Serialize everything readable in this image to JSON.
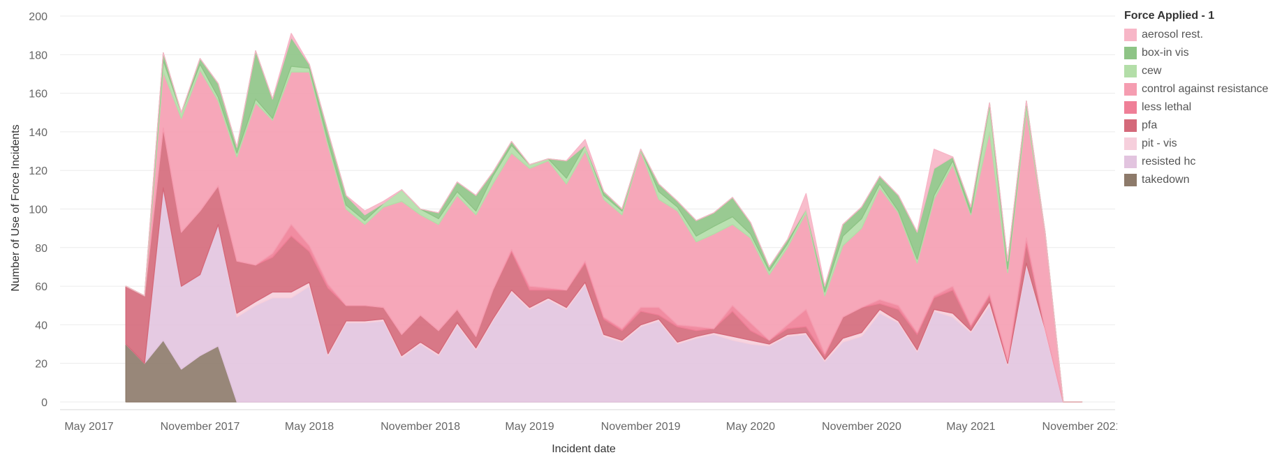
{
  "chart_data": {
    "type": "area",
    "title": "",
    "xlabel": "Incident date",
    "ylabel": "Number of Use of Force Incidents",
    "ylim": [
      -4,
      204
    ],
    "yticks": [
      0,
      20,
      40,
      60,
      80,
      100,
      120,
      140,
      160,
      180,
      200
    ],
    "xlim": [
      "2017-03-14",
      "2021-12-26"
    ],
    "xticks": [
      {
        "date": "2017-05-01",
        "label": "May 2017"
      },
      {
        "date": "2017-11-01",
        "label": "November 2017"
      },
      {
        "date": "2018-05-01",
        "label": "May 2018"
      },
      {
        "date": "2018-11-01",
        "label": "November 2018"
      },
      {
        "date": "2019-05-01",
        "label": "May 2019"
      },
      {
        "date": "2019-11-01",
        "label": "November 2019"
      },
      {
        "date": "2020-05-01",
        "label": "May 2020"
      },
      {
        "date": "2020-11-01",
        "label": "November 2020"
      },
      {
        "date": "2021-05-01",
        "label": "May 2021"
      },
      {
        "date": "2021-11-01",
        "label": "November 2021"
      }
    ],
    "grid": true,
    "legend_position": "right",
    "legend_title": "Force Applied - 1",
    "x": [
      "2017-07-01",
      "2017-08-01",
      "2017-09-01",
      "2017-10-01",
      "2017-11-01",
      "2017-12-01",
      "2018-01-01",
      "2018-02-01",
      "2018-03-01",
      "2018-04-01",
      "2018-05-01",
      "2018-06-01",
      "2018-07-01",
      "2018-08-01",
      "2018-09-01",
      "2018-10-01",
      "2018-11-01",
      "2018-12-01",
      "2019-01-01",
      "2019-02-01",
      "2019-03-01",
      "2019-04-01",
      "2019-05-01",
      "2019-06-01",
      "2019-07-01",
      "2019-08-01",
      "2019-09-01",
      "2019-10-01",
      "2019-11-01",
      "2019-12-01",
      "2020-01-01",
      "2020-02-01",
      "2020-03-01",
      "2020-04-01",
      "2020-05-01",
      "2020-06-01",
      "2020-07-01",
      "2020-08-01",
      "2020-09-01",
      "2020-10-01",
      "2020-11-01",
      "2020-12-01",
      "2021-01-01",
      "2021-02-01",
      "2021-03-01",
      "2021-04-01",
      "2021-05-01",
      "2021-06-01",
      "2021-07-01",
      "2021-08-01",
      "2021-09-01",
      "2021-10-01",
      "2021-11-01"
    ],
    "series": [
      {
        "name": "takedown",
        "color": "#8d7a6a",
        "values": [
          30,
          20,
          32,
          17,
          24,
          29,
          0,
          0,
          0,
          0,
          0,
          0,
          0,
          0,
          0,
          0,
          0,
          0,
          0,
          0,
          0,
          0,
          0,
          0,
          0,
          0,
          0,
          0,
          0,
          0,
          0,
          0,
          0,
          0,
          0,
          0,
          0,
          0,
          0,
          0,
          0,
          0,
          0,
          0,
          0,
          0,
          0,
          0,
          0,
          0,
          0,
          0,
          0
        ]
      },
      {
        "name": "resisted hc",
        "color": "#e2c4df",
        "values": [
          0,
          0,
          79,
          43,
          42,
          63,
          44,
          50,
          54,
          54,
          60,
          24,
          41,
          41,
          42,
          23,
          30,
          24,
          40,
          27,
          42,
          57,
          48,
          53,
          48,
          61,
          34,
          31,
          39,
          42,
          30,
          33,
          35,
          32,
          30,
          29,
          34,
          35,
          21,
          31,
          34,
          46,
          41,
          26,
          47,
          44,
          36,
          50,
          19,
          71,
          37,
          0,
          0
        ]
      },
      {
        "name": "pit - vis",
        "color": "#f6cfdc",
        "values": [
          0,
          0,
          0,
          0,
          0,
          0,
          2,
          2,
          3,
          3,
          2,
          1,
          1,
          1,
          1,
          1,
          1,
          1,
          1,
          1,
          1,
          1,
          1,
          1,
          1,
          1,
          1,
          1,
          1,
          1,
          1,
          1,
          1,
          2,
          2,
          1,
          1,
          1,
          1,
          2,
          2,
          2,
          1,
          1,
          1,
          2,
          1,
          2,
          1,
          1,
          1,
          0,
          0
        ]
      },
      {
        "name": "pfa",
        "color": "#d4697a",
        "values": [
          30,
          35,
          31,
          28,
          33,
          20,
          27,
          19,
          18,
          29,
          16,
          34,
          8,
          8,
          6,
          11,
          14,
          12,
          7,
          6,
          15,
          20,
          9,
          4,
          9,
          10,
          8,
          5,
          7,
          2,
          8,
          3,
          2,
          13,
          5,
          2,
          3,
          3,
          2,
          11,
          13,
          3,
          6,
          8,
          6,
          12,
          2,
          3,
          1,
          10,
          0,
          0,
          0
        ]
      },
      {
        "name": "less lethal",
        "color": "#ef7f97",
        "values": [
          0,
          0,
          0,
          0,
          0,
          0,
          0,
          0,
          2,
          6,
          3,
          2,
          0,
          0,
          0,
          0,
          0,
          0,
          0,
          0,
          0,
          1,
          2,
          1,
          0,
          1,
          1,
          1,
          2,
          4,
          1,
          2,
          0,
          3,
          4,
          0,
          2,
          9,
          1,
          0,
          0,
          2,
          2,
          1,
          1,
          2,
          1,
          1,
          1,
          3,
          0,
          0,
          0
        ]
      },
      {
        "name": "control against resistance",
        "color": "#f59db1",
        "values": [
          0,
          0,
          29,
          59,
          73,
          44,
          54,
          84,
          69,
          79,
          90,
          72,
          50,
          42,
          52,
          69,
          52,
          55,
          59,
          63,
          55,
          50,
          61,
          66,
          55,
          57,
          61,
          59,
          81,
          56,
          59,
          44,
          49,
          42,
          44,
          34,
          40,
          50,
          30,
          37,
          41,
          58,
          48,
          36,
          50,
          63,
          57,
          84,
          45,
          66,
          50,
          0,
          0
        ]
      },
      {
        "name": "cew",
        "color": "#b3dea8",
        "values": [
          0,
          0,
          6,
          3,
          3,
          2,
          2,
          2,
          1,
          3,
          2,
          2,
          2,
          2,
          2,
          6,
          3,
          3,
          2,
          2,
          4,
          4,
          2,
          1,
          3,
          3,
          2,
          2,
          1,
          4,
          2,
          3,
          4,
          4,
          2,
          2,
          2,
          2,
          2,
          5,
          5,
          2,
          1,
          2,
          2,
          2,
          1,
          14,
          2,
          4,
          0,
          0,
          0
        ]
      },
      {
        "name": "box-in vis",
        "color": "#8ec486",
        "values": [
          0,
          0,
          4,
          0,
          3,
          7,
          3,
          25,
          10,
          15,
          2,
          5,
          5,
          3,
          0,
          0,
          0,
          3,
          5,
          8,
          2,
          2,
          0,
          0,
          9,
          0,
          2,
          1,
          0,
          4,
          3,
          8,
          7,
          10,
          6,
          2,
          2,
          0,
          3,
          6,
          6,
          4,
          8,
          14,
          14,
          2,
          3,
          1,
          4,
          1,
          0,
          0,
          0
        ]
      },
      {
        "name": "aerosol rest.",
        "color": "#f7b6c7",
        "values": [
          0,
          0,
          0,
          0,
          0,
          0,
          0,
          0,
          0,
          2,
          0,
          0,
          0,
          2,
          1,
          0,
          0,
          0,
          0,
          0,
          0,
          0,
          0,
          0,
          0,
          3,
          0,
          0,
          0,
          0,
          0,
          0,
          0,
          0,
          0,
          0,
          0,
          8,
          0,
          0,
          0,
          0,
          0,
          0,
          10,
          0,
          0,
          0,
          0,
          0,
          0,
          0,
          0
        ]
      }
    ],
    "legend_order": [
      "aerosol rest.",
      "box-in vis",
      "cew",
      "control against resistance",
      "less lethal",
      "pfa",
      "pit - vis",
      "resisted hc",
      "takedown"
    ]
  }
}
